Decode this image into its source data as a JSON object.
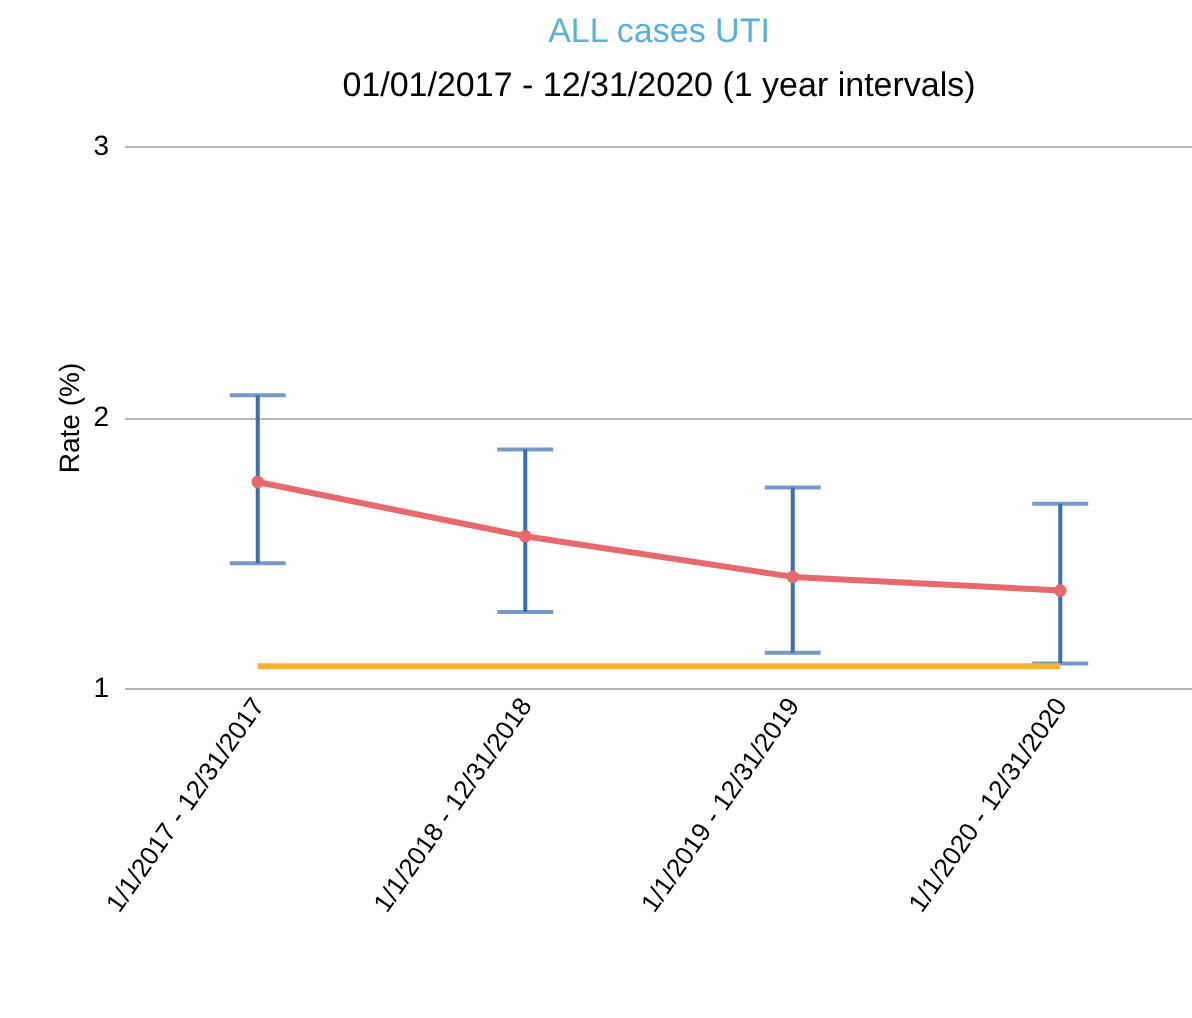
{
  "chart_data": {
    "type": "line",
    "title": "ALL cases UTI",
    "subtitle": "01/01/2017 - 12/31/2020 (1 year intervals)",
    "ylabel": "Rate (%)",
    "categories": [
      "1/1/2017 - 12/31/2017",
      "1/1/2018 - 12/31/2018",
      "1/1/2019 - 12/31/2019",
      "1/1/2020 - 12/31/2020"
    ],
    "series": [
      {
        "color": "#e8696b",
        "marker": "circle",
        "values": [
          1.76,
          1.56,
          1.41,
          1.36
        ],
        "errors": [
          [
            1.46,
            2.08
          ],
          [
            1.28,
            1.88
          ],
          [
            1.13,
            1.74
          ],
          [
            1.09,
            1.68
          ]
        ]
      },
      {
        "color": "#f5b335",
        "marker": "none",
        "values": [
          1.08,
          1.08,
          1.08,
          1.08
        ]
      }
    ],
    "ylim": [
      1,
      3
    ],
    "yticks": [
      1,
      2,
      3
    ],
    "grid": "y"
  }
}
